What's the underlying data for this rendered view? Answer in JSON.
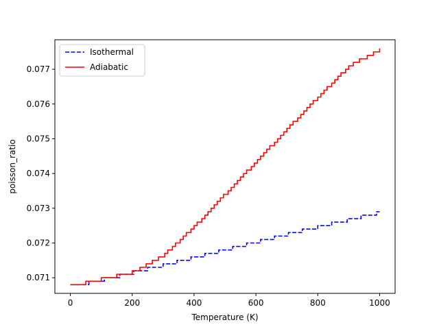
{
  "chart_data": {
    "type": "line",
    "title": "",
    "xlabel": "Temperature (K)",
    "ylabel": "poisson_ratio",
    "xlim": [
      -50,
      1050
    ],
    "ylim": [
      0.07055,
      0.07785
    ],
    "xticks": [
      0,
      200,
      400,
      600,
      800,
      1000
    ],
    "xtick_labels": [
      "0",
      "200",
      "400",
      "600",
      "800",
      "1000"
    ],
    "yticks": [
      0.071,
      0.072,
      0.073,
      0.074,
      0.075,
      0.076,
      0.077
    ],
    "ytick_labels": [
      "0.071",
      "0.072",
      "0.073",
      "0.074",
      "0.075",
      "0.076",
      "0.077"
    ],
    "grid": false,
    "legend": "top-left",
    "series": [
      {
        "name": "Isothermal",
        "color": "#0000ff",
        "linestyle": "dashed",
        "step_resolution": 0.0001,
        "x": [
          0,
          100,
          200,
          300,
          400,
          500,
          600,
          700,
          800,
          900,
          1000
        ],
        "y": [
          0.0708,
          0.07098,
          0.07119,
          0.07141,
          0.07163,
          0.07185,
          0.07207,
          0.07229,
          0.07251,
          0.07272,
          0.07292
        ]
      },
      {
        "name": "Adiabatic",
        "color": "#ff0000",
        "linestyle": "solid",
        "step_resolution": 0.0001,
        "x": [
          0,
          100,
          200,
          300,
          400,
          500,
          600,
          700,
          800,
          900,
          1000
        ],
        "y": [
          0.0708,
          0.071,
          0.0712,
          0.07168,
          0.07251,
          0.07345,
          0.07438,
          0.07532,
          0.07624,
          0.07713,
          0.07762
        ]
      }
    ]
  }
}
